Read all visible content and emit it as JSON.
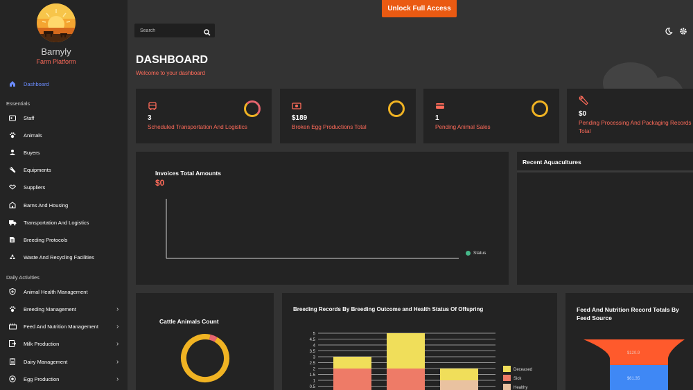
{
  "app": {
    "name": "Barnyly",
    "subtitle": "Farm Platform"
  },
  "topbar": {
    "unlock_label": "Unlock Full Access",
    "search_placeholder": "Search"
  },
  "sidebar": {
    "active": {
      "label": "Dashboard"
    },
    "sections": [
      {
        "title": "Essentials",
        "items": [
          {
            "label": "Staff"
          },
          {
            "label": "Animals"
          },
          {
            "label": "Buyers"
          },
          {
            "label": "Equipments"
          },
          {
            "label": "Suppliers"
          },
          {
            "label": "Barns And Housing"
          },
          {
            "label": "Transportation And Logistics"
          },
          {
            "label": "Breeding Protocols"
          },
          {
            "label": "Waste And Recycling Facilities"
          }
        ]
      },
      {
        "title": "Daily Activities",
        "items": [
          {
            "label": "Animal Health Management"
          },
          {
            "label": "Breeding Management"
          },
          {
            "label": "Feed And Nutrition Management"
          },
          {
            "label": "Milk Production"
          },
          {
            "label": "Dairy Management"
          },
          {
            "label": "Egg Production"
          }
        ]
      }
    ]
  },
  "page": {
    "title": "DASHBOARD",
    "subtitle": "Welcome to your dashboard"
  },
  "stats": [
    {
      "value": "3",
      "label": "Scheduled Transportation And Logistics"
    },
    {
      "value": "$189",
      "label": "Broken Egg Productions Total"
    },
    {
      "value": "1",
      "label": "Pending Animal Sales"
    },
    {
      "value": "$0",
      "label": "Pending Processing And Packaging Records Total"
    }
  ],
  "invoices": {
    "title": "Invoices Total Amounts",
    "value": "$0",
    "legend": "Status"
  },
  "aquaculture": {
    "title": "Recent Aquacultures"
  },
  "cattle": {
    "title": "Cattle Animals Count"
  },
  "breeding": {
    "title": "Breeding Records By Breeding Outcome and Health Status Of Offspring"
  },
  "feed": {
    "title": "Feed And Nutrition Record Totals By Feed Source"
  },
  "chart_data": [
    {
      "type": "line",
      "title": "Invoices Total Amounts",
      "series": [
        {
          "name": "Status",
          "values": []
        }
      ],
      "colors": [
        "#46b98a"
      ]
    },
    {
      "type": "pie",
      "title": "Cattle Animals Count",
      "values": [
        95,
        5
      ],
      "colors": [
        "#f0b323",
        "#e8656e"
      ]
    },
    {
      "type": "bar",
      "title": "Breeding Records By Breeding Outcome and Health Status Of Offspring",
      "categories": [
        "",
        "",
        ""
      ],
      "series": [
        {
          "name": "Healthy",
          "values": [
            0,
            0,
            1
          ],
          "color": "#e9c2a0"
        },
        {
          "name": "Sick",
          "values": [
            2,
            2,
            0
          ],
          "color": "#ee7b67"
        },
        {
          "name": "Deceased",
          "values": [
            1,
            3,
            1
          ],
          "color": "#f0de5a"
        }
      ],
      "yticks": [
        "0.5",
        "1",
        "1.5",
        "2",
        "2.5",
        "3",
        "3.5",
        "4",
        "4.5",
        "5"
      ],
      "ylim": [
        0,
        5
      ]
    },
    {
      "type": "bar",
      "title": "Feed And Nutrition Record Totals By Feed Source",
      "labels": [
        "$120.9",
        "$61.35"
      ],
      "colors": [
        "#ff5a2c",
        "#3f88f5"
      ]
    }
  ]
}
